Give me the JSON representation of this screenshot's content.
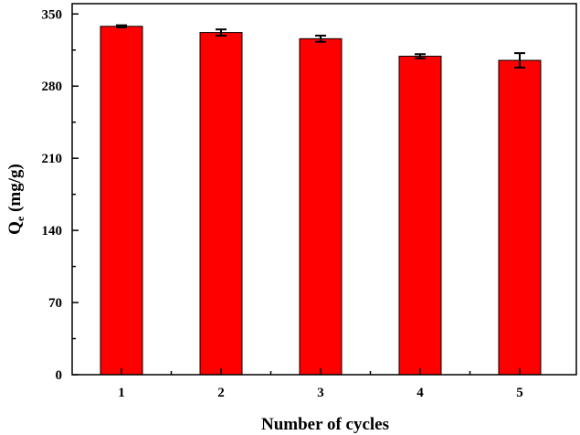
{
  "chart_data": {
    "type": "bar",
    "categories": [
      "1",
      "2",
      "3",
      "4",
      "5"
    ],
    "values": [
      338,
      332,
      326,
      309,
      305
    ],
    "errors": [
      1,
      3,
      3,
      2,
      7
    ],
    "xlabel": "Number of cycles",
    "ylabel_main": "Q",
    "ylabel_sub": "e",
    "ylabel_rest": " (mg/g)",
    "ylim": [
      0,
      360
    ],
    "yticks": [
      0,
      70,
      140,
      210,
      280,
      350
    ],
    "y_minor_step": 35,
    "grid": false,
    "legend": "none",
    "colors": {
      "bar": "#ff0000",
      "bar_edge": "#000000",
      "axis": "#000000"
    }
  }
}
